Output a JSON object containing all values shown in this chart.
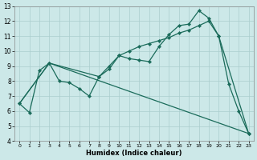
{
  "xlabel": "Humidex (Indice chaleur)",
  "bg_color": "#cce8e8",
  "grid_color": "#aacece",
  "line_color": "#1a6b5a",
  "line1_x": [
    0,
    1,
    2,
    3,
    4,
    5,
    6,
    7,
    8,
    9,
    10,
    11,
    12,
    13,
    14,
    15,
    16,
    17,
    18,
    19,
    20,
    21,
    22,
    23
  ],
  "line1_y": [
    6.5,
    5.9,
    8.7,
    9.2,
    8.0,
    7.9,
    7.5,
    7.0,
    8.3,
    8.8,
    9.7,
    9.5,
    9.4,
    9.3,
    10.3,
    11.1,
    11.7,
    11.8,
    12.7,
    12.2,
    11.0,
    7.8,
    6.0,
    4.5
  ],
  "line2_x": [
    0,
    3,
    8,
    9,
    10,
    11,
    12,
    13,
    14,
    15,
    16,
    17,
    18,
    19,
    20,
    23
  ],
  "line2_y": [
    6.5,
    9.2,
    8.3,
    9.0,
    9.7,
    10.0,
    10.3,
    10.5,
    10.7,
    10.9,
    11.2,
    11.4,
    11.7,
    12.0,
    11.0,
    4.5
  ],
  "line3_x": [
    0,
    3,
    23
  ],
  "line3_y": [
    6.5,
    9.2,
    4.5
  ],
  "xlim": [
    -0.5,
    23.5
  ],
  "ylim": [
    4,
    13
  ],
  "xticks": [
    0,
    1,
    2,
    3,
    4,
    5,
    6,
    7,
    8,
    9,
    10,
    11,
    12,
    13,
    14,
    15,
    16,
    17,
    18,
    19,
    20,
    21,
    22,
    23
  ],
  "yticks": [
    4,
    5,
    6,
    7,
    8,
    9,
    10,
    11,
    12,
    13
  ]
}
